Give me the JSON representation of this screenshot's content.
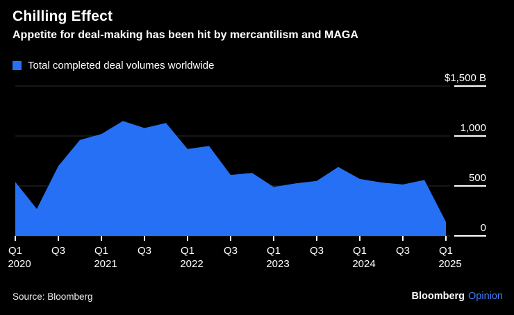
{
  "title": "Chilling Effect",
  "subtitle": "Appetite for deal-making has been hit by mercantilism and MAGA",
  "legend": {
    "label": "Total completed deal volumes worldwide",
    "swatch_icon": "blue-square-icon"
  },
  "source": "Source: Bloomberg",
  "brand": {
    "name": "Bloomberg",
    "unit": "Opinion"
  },
  "colors": {
    "accent": "#2570f5",
    "background": "#000000",
    "text": "#ffffff",
    "brand_unit": "#3e7ef7",
    "gridline": "#2b2b2b",
    "tick": "#ffffff"
  },
  "chart_data": {
    "type": "area",
    "title": "Chilling Effect",
    "subtitle": "Appetite for deal-making has been hit by mercantilism and MAGA",
    "series_name": "Total completed deal volumes worldwide",
    "x": [
      "Q1 2020",
      "Q2 2020",
      "Q3 2020",
      "Q4 2020",
      "Q1 2021",
      "Q2 2021",
      "Q3 2021",
      "Q4 2021",
      "Q1 2022",
      "Q2 2022",
      "Q3 2022",
      "Q4 2022",
      "Q1 2023",
      "Q2 2023",
      "Q3 2023",
      "Q4 2023",
      "Q1 2024",
      "Q2 2024",
      "Q3 2024",
      "Q4 2024",
      "Q1 2025"
    ],
    "values": [
      540,
      270,
      700,
      960,
      1020,
      1150,
      1080,
      1130,
      870,
      900,
      610,
      630,
      490,
      525,
      550,
      690,
      570,
      535,
      515,
      560,
      140
    ],
    "unit": "$B",
    "ylim": [
      0,
      1500
    ],
    "yticks": [
      {
        "value": 1500,
        "label": "$1,500 B"
      },
      {
        "value": 1000,
        "label": "1,000"
      },
      {
        "value": 500,
        "label": "500"
      },
      {
        "value": 0,
        "label": "0"
      }
    ],
    "xticks": [
      {
        "index": 0,
        "label": "Q1",
        "year": "2020"
      },
      {
        "index": 2,
        "label": "Q3",
        "year": ""
      },
      {
        "index": 4,
        "label": "Q1",
        "year": "2021"
      },
      {
        "index": 6,
        "label": "Q3",
        "year": ""
      },
      {
        "index": 8,
        "label": "Q1",
        "year": "2022"
      },
      {
        "index": 10,
        "label": "Q3",
        "year": ""
      },
      {
        "index": 12,
        "label": "Q1",
        "year": "2023"
      },
      {
        "index": 14,
        "label": "Q3",
        "year": ""
      },
      {
        "index": 16,
        "label": "Q1",
        "year": "2024"
      },
      {
        "index": 18,
        "label": "Q3",
        "year": ""
      },
      {
        "index": 20,
        "label": "Q1",
        "year": "2025"
      }
    ],
    "legend_position": "top-left",
    "grid": "horizontal-right-stubs"
  }
}
